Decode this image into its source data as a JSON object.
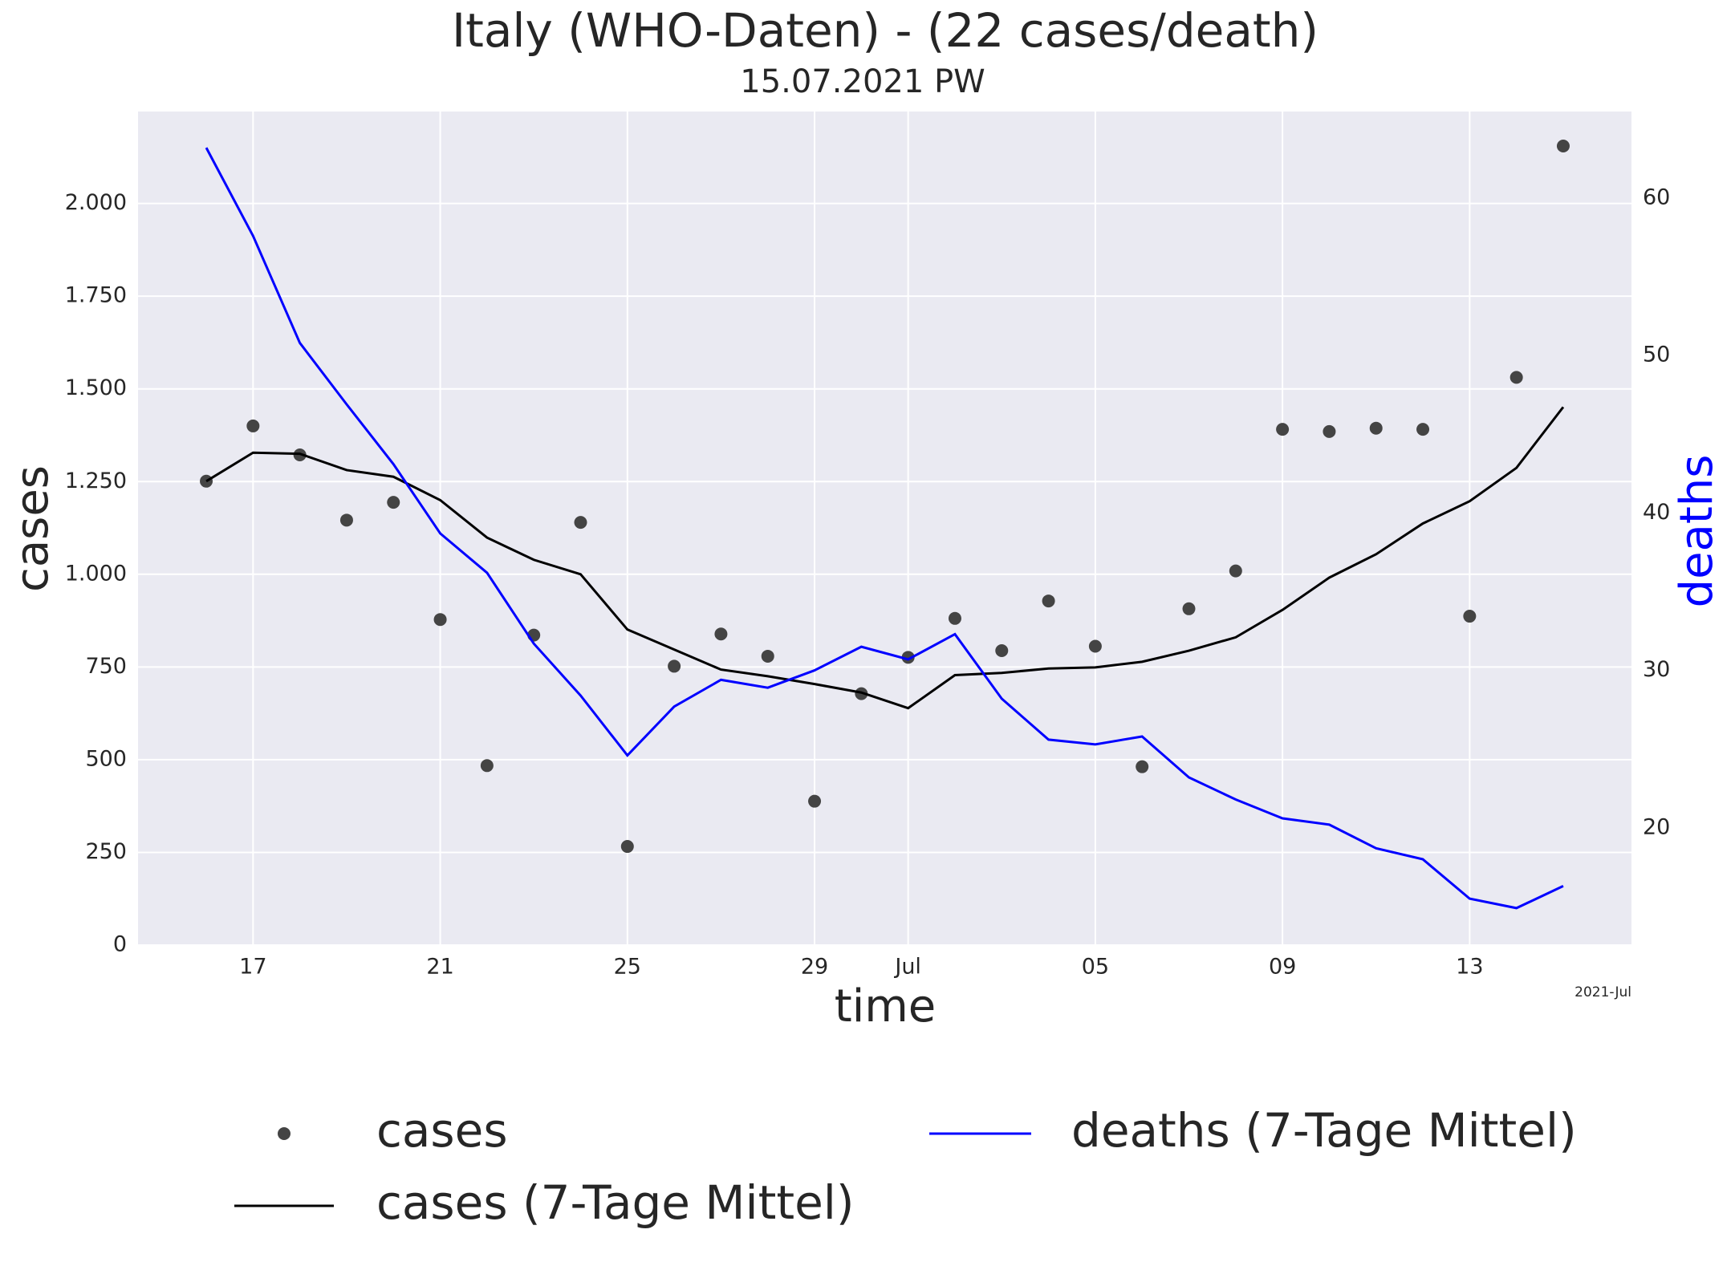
{
  "chart_data": {
    "type": "line",
    "title": "Italy (WHO-Daten) - (22 cases/death)",
    "subtitle": "15.07.2021 PW",
    "x_label": "time",
    "y_label": "cases",
    "y2_label": "deaths",
    "x_offset_label": "2021-Jul",
    "x": [
      "2021-06-16",
      "2021-06-17",
      "2021-06-18",
      "2021-06-19",
      "2021-06-20",
      "2021-06-21",
      "2021-06-22",
      "2021-06-23",
      "2021-06-24",
      "2021-06-25",
      "2021-06-26",
      "2021-06-27",
      "2021-06-28",
      "2021-06-29",
      "2021-06-30",
      "2021-07-01",
      "2021-07-02",
      "2021-07-03",
      "2021-07-04",
      "2021-07-05",
      "2021-07-06",
      "2021-07-07",
      "2021-07-08",
      "2021-07-09",
      "2021-07-10",
      "2021-07-11",
      "2021-07-12",
      "2021-07-13",
      "2021-07-14",
      "2021-07-15"
    ],
    "xlim": [
      "2021-06-14T13:00",
      "2021-07-16T11:00"
    ],
    "xticks": [
      {
        "value": "2021-06-17",
        "label": "17"
      },
      {
        "value": "2021-06-21",
        "label": "21"
      },
      {
        "value": "2021-06-25",
        "label": "25"
      },
      {
        "value": "2021-06-29",
        "label": "29"
      },
      {
        "value": "2021-07-01",
        "label": "Jul"
      },
      {
        "value": "2021-07-05",
        "label": "05"
      },
      {
        "value": "2021-07-09",
        "label": "09"
      },
      {
        "value": "2021-07-13",
        "label": "13"
      }
    ],
    "ylim": [
      0,
      2248
    ],
    "yticks": [
      0,
      250,
      500,
      750,
      {
        "value": 1000,
        "label": "1.000"
      },
      {
        "value": 1250,
        "label": "1.250"
      },
      {
        "value": 1500,
        "label": "1.500"
      },
      {
        "value": 1750,
        "label": "1.750"
      },
      {
        "value": 2000,
        "label": "2.000"
      }
    ],
    "y2lim": [
      12.55,
      65.5
    ],
    "y2ticks": [
      20,
      30,
      40,
      50,
      60
    ],
    "grid": true,
    "series": [
      {
        "name": "cases",
        "mark": "scatter",
        "color": "#444444",
        "values": [
          1251,
          1400,
          1322,
          1146,
          1194,
          878,
          484,
          836,
          1140,
          266,
          752,
          839,
          779,
          388,
          678,
          776,
          881,
          794,
          928,
          806,
          481,
          907,
          1009,
          1391,
          1385,
          1394,
          1391,
          887,
          1531,
          2155
        ]
      },
      {
        "name": "cases (7-Tage Mittel)",
        "mark": "line",
        "color": "#000000",
        "values": [
          1251,
          1328,
          1325,
          1281,
          1263,
          1200,
          1099,
          1039,
          1000,
          851,
          797,
          743,
          725,
          704,
          681,
          639,
          728,
          734,
          746,
          749,
          764,
          794,
          830,
          904,
          991,
          1054,
          1137,
          1197,
          1287,
          1451
        ]
      },
      {
        "name": "deaths (7-Tage Mittel)",
        "mark": "line",
        "color": "#0000ff",
        "axis": "y2",
        "values": [
          63.2,
          57.6,
          50.8,
          46.9,
          43.1,
          38.7,
          36.2,
          31.7,
          28.4,
          24.6,
          27.7,
          29.4,
          28.9,
          30.0,
          31.5,
          30.7,
          32.3,
          28.2,
          25.6,
          25.3,
          25.8,
          23.2,
          21.8,
          20.6,
          20.2,
          18.7,
          18.0,
          15.5,
          14.9,
          16.3
        ]
      }
    ]
  }
}
